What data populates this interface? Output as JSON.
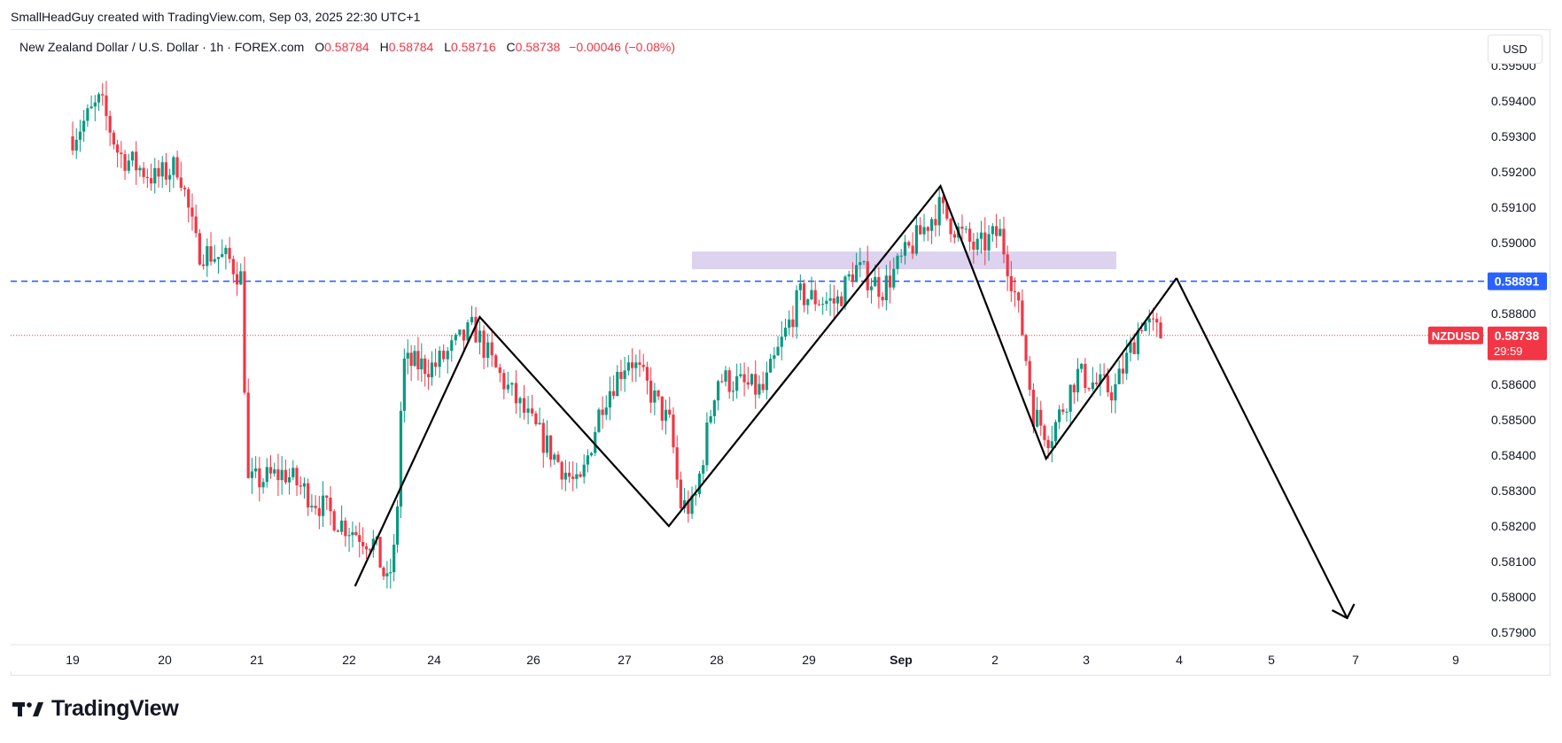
{
  "header": {
    "credit": "SmallHeadGuy created with TradingView.com, Sep 03, 2025 22:30 UTC+1"
  },
  "legend": {
    "instrument": "New Zealand Dollar / U.S. Dollar · 1h · FOREX.com",
    "open_label": "O",
    "open": "0.58784",
    "high_label": "H",
    "high": "0.58784",
    "low_label": "L",
    "low": "0.58716",
    "close_label": "C",
    "close": "0.58738",
    "change": "−0.00046 (−0.08%)"
  },
  "currency_button": "USD",
  "footer": {
    "brand": "TradingView"
  },
  "colors": {
    "up": "#089981",
    "down": "#f23645",
    "level_line": "#2962ff",
    "zone": "#d1c4e9",
    "drawing": "#000000",
    "grid": "#e0e3eb"
  },
  "chart_data": {
    "type": "candlestick",
    "symbol": "NZDUSD",
    "y_axis": {
      "range": [
        0.5785,
        0.5944
      ],
      "ticks": [
        "0.57900",
        "0.58000",
        "0.58100",
        "0.58200",
        "0.58300",
        "0.58400",
        "0.58500",
        "0.58600",
        "0.58800",
        "0.59000",
        "0.59100",
        "0.59200",
        "0.59300",
        "0.59400",
        "0.59500"
      ]
    },
    "x_axis": {
      "labels": [
        "19",
        "20",
        "21",
        "22",
        "24",
        "26",
        "27",
        "28",
        "29",
        "Sep",
        "2",
        "3",
        "4",
        "5",
        "7",
        "9"
      ],
      "bold_labels": [
        "Sep"
      ]
    },
    "price_tags": [
      {
        "name": "level",
        "value": 0.58891,
        "text": "0.58891",
        "color": "#2962ff"
      },
      {
        "name": "last",
        "value": 0.58738,
        "text": "0.58738",
        "symbol": "NZDUSD",
        "countdown": "29:59",
        "color": "#f23645"
      }
    ],
    "horizontal_level": 0.58891,
    "resistance_zone": {
      "low": 0.58925,
      "high": 0.58975,
      "from_day": "27",
      "to_day": "3"
    },
    "waypoints": [
      [
        0,
        0.593
      ],
      [
        0.3,
        0.594
      ],
      [
        0.5,
        0.5925
      ],
      [
        0.9,
        0.5918
      ],
      [
        1.15,
        0.5922
      ],
      [
        1.35,
        0.5898
      ],
      [
        1.7,
        0.5895
      ],
      [
        1.83,
        0.589
      ],
      [
        1.9,
        0.5832
      ],
      [
        2.3,
        0.5835
      ],
      [
        2.9,
        0.5821
      ],
      [
        3.3,
        0.5815
      ],
      [
        3.45,
        0.5803
      ],
      [
        3.55,
        0.5815
      ],
      [
        3.63,
        0.5866
      ],
      [
        4.0,
        0.5865
      ],
      [
        4.4,
        0.5876
      ],
      [
        4.6,
        0.5865
      ],
      [
        5.0,
        0.5848
      ],
      [
        5.5,
        0.583
      ],
      [
        5.75,
        0.5855
      ],
      [
        6.05,
        0.5868
      ],
      [
        6.5,
        0.5848
      ],
      [
        6.6,
        0.5826
      ],
      [
        6.75,
        0.5825
      ],
      [
        7.0,
        0.5862
      ],
      [
        7.5,
        0.5858
      ],
      [
        7.9,
        0.5885
      ],
      [
        8.3,
        0.5883
      ],
      [
        8.5,
        0.5893
      ],
      [
        8.8,
        0.5887
      ],
      [
        9.4,
        0.591
      ],
      [
        9.55,
        0.5905
      ],
      [
        9.8,
        0.5898
      ],
      [
        10.05,
        0.5903
      ],
      [
        10.2,
        0.5888
      ],
      [
        10.3,
        0.5875
      ],
      [
        10.42,
        0.5852
      ],
      [
        10.6,
        0.5845
      ],
      [
        10.9,
        0.5863
      ],
      [
        11.1,
        0.586
      ],
      [
        11.3,
        0.5858
      ],
      [
        11.6,
        0.5878
      ],
      [
        11.8,
        0.5874
      ]
    ],
    "drawing_path": [
      [
        3.07,
        0.5803
      ],
      [
        4.46,
        0.5879
      ],
      [
        6.48,
        0.582
      ],
      [
        9.42,
        0.5916
      ],
      [
        10.56,
        0.5839
      ],
      [
        11.97,
        0.589
      ]
    ],
    "projection_arrow": {
      "from": [
        11.97,
        0.589
      ],
      "to": [
        13.9,
        0.5794
      ]
    }
  }
}
